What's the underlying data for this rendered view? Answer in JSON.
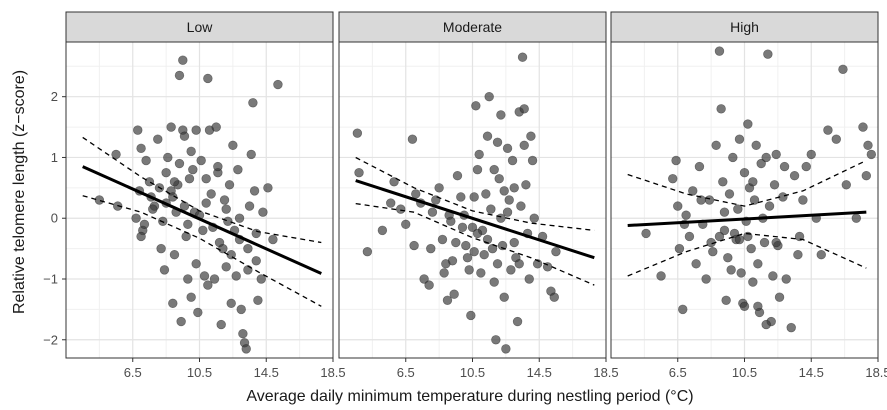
{
  "chart_data": {
    "type": "scatter",
    "xlabel": "Average daily minimum temperature during nestling period (°C)",
    "ylabel": "Relative telomere length (z−score)",
    "xlim": [
      2.5,
      18.5
    ],
    "ylim": [
      -2.3,
      2.9
    ],
    "x_ticks": [
      6.5,
      10.5,
      14.5,
      18.5
    ],
    "x_tick_labels": [
      "6.5",
      "10.5",
      "14.5",
      "18.5"
    ],
    "y_ticks": [
      -2,
      -1,
      0,
      1,
      2
    ],
    "y_tick_labels": [
      "−2",
      "−1",
      "0",
      "1",
      "2"
    ],
    "grid": true,
    "point_color": "#3a3a3a",
    "line_color": "#000000",
    "panels": [
      {
        "label": "Low",
        "fit": {
          "x": [
            3.5,
            17.8
          ],
          "y": [
            0.85,
            -0.91
          ]
        },
        "ci_upper": [
          [
            3.5,
            1.33
          ],
          [
            7.0,
            0.68
          ],
          [
            10.5,
            0.12
          ],
          [
            14.0,
            -0.22
          ],
          [
            17.8,
            -0.4
          ]
        ],
        "ci_lower": [
          [
            3.5,
            0.37
          ],
          [
            7.0,
            0.1
          ],
          [
            10.5,
            -0.33
          ],
          [
            14.0,
            -0.88
          ],
          [
            17.8,
            -1.45
          ]
        ],
        "points": [
          [
            4.5,
            0.3
          ],
          [
            5.5,
            1.05
          ],
          [
            5.6,
            0.2
          ],
          [
            6.8,
            1.45
          ],
          [
            7.0,
            1.15
          ],
          [
            6.9,
            0.45
          ],
          [
            7.1,
            -0.2
          ],
          [
            7.0,
            -0.3
          ],
          [
            7.3,
            0.95
          ],
          [
            7.5,
            0.6
          ],
          [
            7.6,
            0.35
          ],
          [
            7.8,
            0.2
          ],
          [
            8.0,
            1.3
          ],
          [
            8.1,
            0.5
          ],
          [
            8.3,
            -0.05
          ],
          [
            8.2,
            -0.5
          ],
          [
            8.4,
            -0.85
          ],
          [
            8.5,
            0.75
          ],
          [
            8.6,
            1.0
          ],
          [
            8.8,
            1.5
          ],
          [
            8.8,
            0.45
          ],
          [
            8.9,
            0.35
          ],
          [
            9.0,
            -0.6
          ],
          [
            9.1,
            0.1
          ],
          [
            9.2,
            0.55
          ],
          [
            9.3,
            0.9
          ],
          [
            9.3,
            2.35
          ],
          [
            9.5,
            2.6
          ],
          [
            9.5,
            1.45
          ],
          [
            9.6,
            0.2
          ],
          [
            9.7,
            -0.3
          ],
          [
            9.8,
            -1.0
          ],
          [
            9.9,
            0.65
          ],
          [
            10.0,
            1.1
          ],
          [
            10.1,
            0.8
          ],
          [
            10.2,
            0.1
          ],
          [
            10.3,
            -0.75
          ],
          [
            10.4,
            -1.55
          ],
          [
            10.5,
            0.05
          ],
          [
            10.6,
            0.95
          ],
          [
            10.7,
            -0.2
          ],
          [
            10.8,
            -0.95
          ],
          [
            10.9,
            0.65
          ],
          [
            11.0,
            2.3
          ],
          [
            11.1,
            1.45
          ],
          [
            11.2,
            0.4
          ],
          [
            11.3,
            -0.15
          ],
          [
            11.4,
            -1.0
          ],
          [
            11.5,
            1.5
          ],
          [
            11.6,
            0.75
          ],
          [
            11.7,
            -0.4
          ],
          [
            11.8,
            -1.75
          ],
          [
            12.0,
            0.3
          ],
          [
            12.1,
            -0.8
          ],
          [
            12.2,
            -0.05
          ],
          [
            12.3,
            0.55
          ],
          [
            12.4,
            -0.6
          ],
          [
            12.5,
            1.2
          ],
          [
            12.6,
            -0.2
          ],
          [
            12.7,
            -0.95
          ],
          [
            12.8,
            0.8
          ],
          [
            12.9,
            -0.35
          ],
          [
            13.0,
            -1.5
          ],
          [
            13.1,
            -1.9
          ],
          [
            13.2,
            -2.05
          ],
          [
            13.3,
            -2.15
          ],
          [
            13.4,
            -0.5
          ],
          [
            13.5,
            0.2
          ],
          [
            13.6,
            1.05
          ],
          [
            13.7,
            1.9
          ],
          [
            13.8,
            0.45
          ],
          [
            13.9,
            -0.7
          ],
          [
            14.0,
            -1.35
          ],
          [
            14.2,
            -1.0
          ],
          [
            14.3,
            0.1
          ],
          [
            14.6,
            0.5
          ],
          [
            14.9,
            -0.35
          ],
          [
            15.2,
            2.2
          ],
          [
            8.9,
            -1.4
          ],
          [
            9.4,
            -1.7
          ],
          [
            10.0,
            -1.3
          ],
          [
            11.0,
            -1.1
          ],
          [
            12.4,
            -1.4
          ],
          [
            6.7,
            0.0
          ],
          [
            7.7,
            0.15
          ],
          [
            9.0,
            0.6
          ],
          [
            9.8,
            -0.1
          ],
          [
            10.9,
            0.25
          ],
          [
            11.9,
            -0.5
          ],
          [
            12.9,
            0.0
          ],
          [
            13.4,
            -0.85
          ],
          [
            7.2,
            -0.1
          ],
          [
            10.3,
            1.45
          ],
          [
            11.6,
            0.85
          ],
          [
            9.6,
            1.35
          ],
          [
            8.5,
            0.25
          ],
          [
            12.1,
            0.15
          ],
          [
            13.9,
            -0.25
          ]
        ]
      },
      {
        "label": "Moderate",
        "fit": {
          "x": [
            3.5,
            17.8
          ],
          "y": [
            0.62,
            -0.65
          ]
        },
        "ci_upper": [
          [
            3.5,
            1.0
          ],
          [
            7.0,
            0.5
          ],
          [
            10.5,
            0.12
          ],
          [
            14.0,
            -0.08
          ],
          [
            17.8,
            -0.2
          ]
        ],
        "ci_lower": [
          [
            3.5,
            0.24
          ],
          [
            7.0,
            0.1
          ],
          [
            10.5,
            -0.32
          ],
          [
            14.0,
            -0.65
          ],
          [
            17.8,
            -1.1
          ]
        ],
        "points": [
          [
            3.6,
            1.4
          ],
          [
            3.7,
            0.75
          ],
          [
            4.2,
            -0.55
          ],
          [
            5.1,
            -0.2
          ],
          [
            5.6,
            0.25
          ],
          [
            5.8,
            0.6
          ],
          [
            6.2,
            0.15
          ],
          [
            6.5,
            -0.1
          ],
          [
            6.9,
            1.3
          ],
          [
            7.1,
            0.4
          ],
          [
            7.4,
            0.25
          ],
          [
            7.6,
            -1.0
          ],
          [
            7.9,
            -1.1
          ],
          [
            8.0,
            -0.5
          ],
          [
            8.3,
            0.3
          ],
          [
            8.5,
            0.5
          ],
          [
            8.7,
            -0.35
          ],
          [
            8.8,
            -0.9
          ],
          [
            9.0,
            -1.35
          ],
          [
            9.1,
            0.05
          ],
          [
            9.3,
            -0.7
          ],
          [
            9.4,
            -1.25
          ],
          [
            9.6,
            0.7
          ],
          [
            9.8,
            0.35
          ],
          [
            9.9,
            -0.15
          ],
          [
            10.0,
            0.05
          ],
          [
            10.1,
            -0.45
          ],
          [
            10.3,
            -0.85
          ],
          [
            10.4,
            -1.6
          ],
          [
            10.5,
            -0.15
          ],
          [
            10.6,
            0.35
          ],
          [
            10.7,
            1.85
          ],
          [
            10.8,
            0.8
          ],
          [
            10.9,
            1.05
          ],
          [
            11.1,
            -0.2
          ],
          [
            11.2,
            -0.6
          ],
          [
            11.3,
            0.4
          ],
          [
            11.4,
            1.35
          ],
          [
            11.5,
            2.0
          ],
          [
            11.6,
            0.15
          ],
          [
            11.7,
            -0.5
          ],
          [
            11.8,
            -1.05
          ],
          [
            11.9,
            -2.0
          ],
          [
            12.0,
            1.25
          ],
          [
            12.1,
            0.65
          ],
          [
            12.2,
            0.0
          ],
          [
            12.3,
            -0.45
          ],
          [
            12.4,
            -1.3
          ],
          [
            12.5,
            -2.15
          ],
          [
            12.6,
            1.15
          ],
          [
            12.7,
            0.3
          ],
          [
            12.8,
            -0.85
          ],
          [
            12.9,
            0.95
          ],
          [
            13.0,
            0.5
          ],
          [
            13.1,
            -0.65
          ],
          [
            13.2,
            -1.7
          ],
          [
            13.3,
            1.75
          ],
          [
            13.4,
            0.2
          ],
          [
            13.5,
            2.65
          ],
          [
            13.6,
            1.8
          ],
          [
            13.7,
            0.55
          ],
          [
            13.8,
            -0.25
          ],
          [
            13.9,
            -1.0
          ],
          [
            14.0,
            1.35
          ],
          [
            14.1,
            0.95
          ],
          [
            14.2,
            0.0
          ],
          [
            14.4,
            -0.75
          ],
          [
            14.7,
            -0.3
          ],
          [
            15.0,
            -0.8
          ],
          [
            15.2,
            -1.2
          ],
          [
            15.4,
            -1.3
          ],
          [
            15.5,
            -0.55
          ],
          [
            12.0,
            -0.75
          ],
          [
            11.0,
            -0.9
          ],
          [
            10.2,
            -0.65
          ],
          [
            9.5,
            -0.4
          ],
          [
            8.9,
            -0.75
          ],
          [
            12.6,
            0.1
          ],
          [
            13.0,
            -0.4
          ],
          [
            11.4,
            -0.35
          ],
          [
            10.6,
            -0.55
          ],
          [
            13.6,
            1.2
          ],
          [
            12.2,
            1.7
          ],
          [
            9.2,
            -0.05
          ],
          [
            7.0,
            -0.45
          ],
          [
            8.1,
            0.1
          ],
          [
            11.8,
            0.8
          ],
          [
            13.3,
            -0.75
          ],
          [
            12.4,
            0.45
          ],
          [
            10.8,
            -0.25
          ]
        ]
      },
      {
        "label": "High",
        "fit": {
          "x": [
            3.5,
            17.8
          ],
          "y": [
            -0.12,
            0.1
          ]
        },
        "ci_upper": [
          [
            3.5,
            0.72
          ],
          [
            7.0,
            0.4
          ],
          [
            10.5,
            0.2
          ],
          [
            14.0,
            0.45
          ],
          [
            17.8,
            0.95
          ]
        ],
        "ci_lower": [
          [
            3.5,
            -0.95
          ],
          [
            7.0,
            -0.55
          ],
          [
            10.5,
            -0.25
          ],
          [
            14.0,
            -0.35
          ],
          [
            17.8,
            -0.82
          ]
        ],
        "points": [
          [
            4.6,
            -0.25
          ],
          [
            5.5,
            -0.95
          ],
          [
            6.2,
            0.65
          ],
          [
            6.4,
            0.95
          ],
          [
            6.5,
            0.2
          ],
          [
            6.6,
            -0.5
          ],
          [
            6.8,
            -1.5
          ],
          [
            7.0,
            0.05
          ],
          [
            7.2,
            -0.3
          ],
          [
            7.4,
            0.45
          ],
          [
            7.6,
            -0.75
          ],
          [
            7.8,
            0.85
          ],
          [
            8.0,
            -0.1
          ],
          [
            8.2,
            -1.0
          ],
          [
            8.4,
            0.3
          ],
          [
            8.6,
            -0.55
          ],
          [
            8.8,
            1.2
          ],
          [
            9.0,
            2.75
          ],
          [
            9.1,
            1.8
          ],
          [
            9.2,
            0.6
          ],
          [
            9.3,
            -0.2
          ],
          [
            9.4,
            -1.35
          ],
          [
            9.5,
            -0.65
          ],
          [
            9.6,
            0.4
          ],
          [
            9.8,
            1.0
          ],
          [
            9.9,
            -0.25
          ],
          [
            10.0,
            -0.35
          ],
          [
            10.1,
            0.15
          ],
          [
            10.2,
            1.3
          ],
          [
            10.3,
            -0.9
          ],
          [
            10.4,
            -1.4
          ],
          [
            10.5,
            0.75
          ],
          [
            10.6,
            -0.05
          ],
          [
            10.7,
            1.55
          ],
          [
            10.8,
            0.5
          ],
          [
            10.9,
            -0.5
          ],
          [
            11.0,
            -1.05
          ],
          [
            11.1,
            0.3
          ],
          [
            11.2,
            1.2
          ],
          [
            11.3,
            -0.75
          ],
          [
            11.4,
            -1.55
          ],
          [
            11.5,
            0.9
          ],
          [
            11.6,
            0.0
          ],
          [
            11.7,
            -0.4
          ],
          [
            11.8,
            1.0
          ],
          [
            11.9,
            2.7
          ],
          [
            12.0,
            0.2
          ],
          [
            12.1,
            -1.7
          ],
          [
            12.2,
            -0.95
          ],
          [
            12.3,
            0.55
          ],
          [
            12.4,
            1.05
          ],
          [
            12.5,
            -0.45
          ],
          [
            12.6,
            -1.3
          ],
          [
            12.8,
            0.35
          ],
          [
            13.0,
            -1.0
          ],
          [
            13.3,
            -1.8
          ],
          [
            13.5,
            0.7
          ],
          [
            13.8,
            -0.3
          ],
          [
            14.0,
            0.3
          ],
          [
            14.2,
            0.85
          ],
          [
            14.5,
            1.05
          ],
          [
            14.8,
            0.0
          ],
          [
            15.1,
            -0.6
          ],
          [
            15.5,
            1.45
          ],
          [
            16.0,
            1.3
          ],
          [
            16.4,
            2.45
          ],
          [
            16.6,
            0.55
          ],
          [
            17.2,
            0.0
          ],
          [
            17.6,
            1.5
          ],
          [
            17.9,
            1.2
          ],
          [
            18.1,
            1.05
          ],
          [
            17.8,
            0.7
          ],
          [
            9.7,
            -0.85
          ],
          [
            11.3,
            -1.45
          ],
          [
            10.2,
            -0.35
          ],
          [
            7.9,
            0.3
          ],
          [
            12.9,
            0.85
          ],
          [
            11.0,
            0.6
          ],
          [
            8.5,
            -0.4
          ],
          [
            10.7,
            -0.3
          ],
          [
            9.3,
            0.1
          ],
          [
            12.4,
            -0.4
          ],
          [
            13.7,
            -0.6
          ],
          [
            6.9,
            -0.1
          ],
          [
            10.5,
            -1.45
          ],
          [
            11.8,
            -1.75
          ],
          [
            9.0,
            -0.3
          ]
        ]
      }
    ]
  }
}
